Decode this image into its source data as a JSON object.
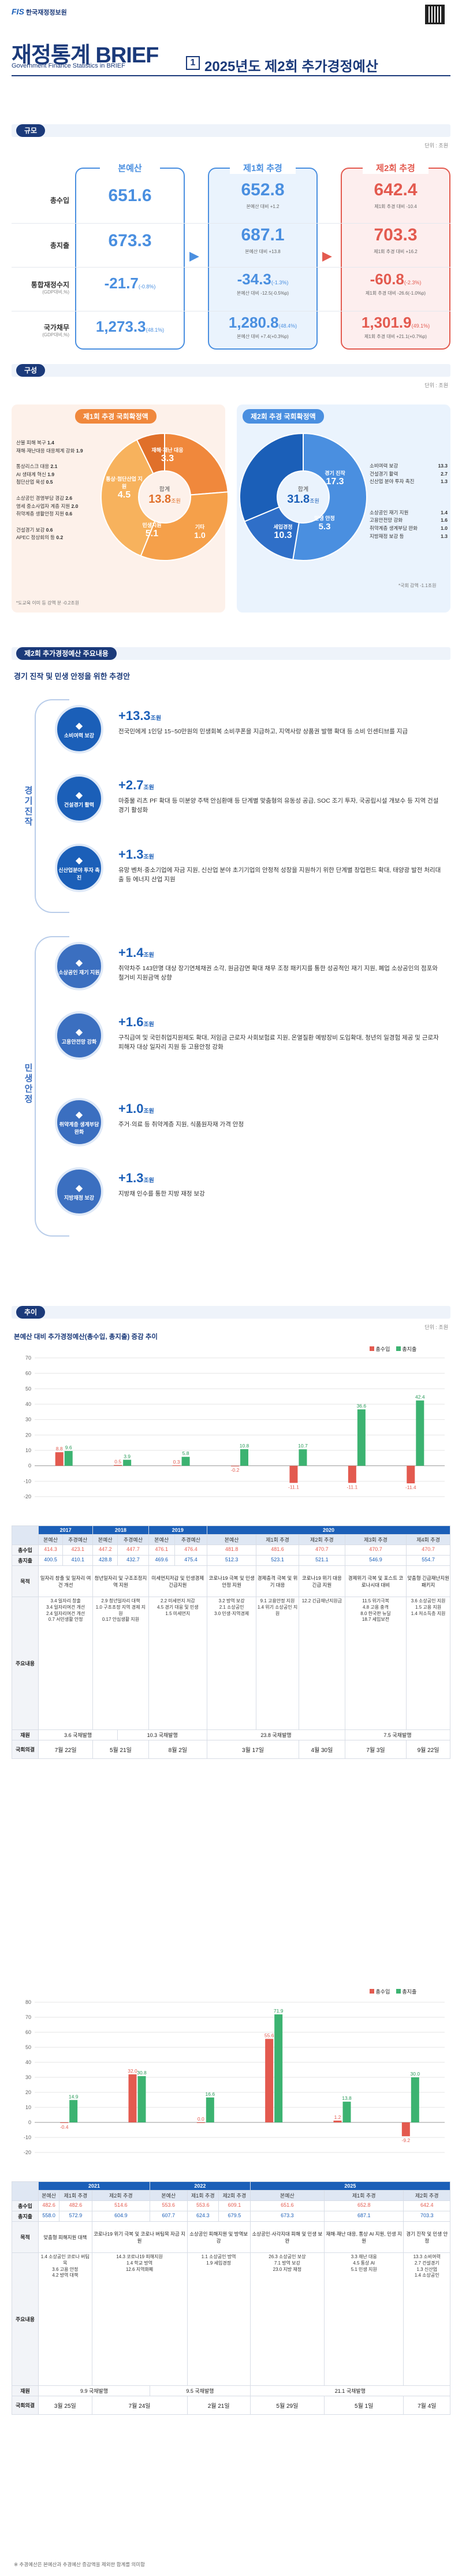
{
  "header": {
    "org": "한국재정정보원",
    "title": "재정통계 BRIEF",
    "subtitle": "Government Finance Statistics in BRIEF",
    "issue_no": "1",
    "issue_title": "2025년도 제2회 추가경정예산"
  },
  "scale": {
    "tag": "규모",
    "unit": "단위 : 조원",
    "cols": [
      {
        "label": "본예산",
        "color": "#4a8fe0"
      },
      {
        "label": "제1회 추경",
        "color": "#4a8fe0"
      },
      {
        "label": "제2회 추경",
        "color": "#e35a4f"
      }
    ],
    "rows": [
      {
        "label": "총수입",
        "sub": "",
        "v": [
          "651.6",
          "652.8",
          "642.4"
        ],
        "n": [
          "",
          "본예산 대비 +1.2",
          "제1회 추경 대비 -10.4"
        ]
      },
      {
        "label": "총지출",
        "sub": "",
        "v": [
          "673.3",
          "687.1",
          "703.3"
        ],
        "n": [
          "",
          "본예산 대비 +13.8",
          "제1회 추경 대비 +16.2"
        ]
      },
      {
        "label": "통합재정수지",
        "sub": "(GDP대비,%)",
        "v": [
          "-21.7",
          "-34.3",
          "-60.8"
        ],
        "p": [
          "(-0.8%)",
          "(-1.3%)",
          "(-2.3%)"
        ],
        "n": [
          "",
          "본예산 대비 -12.5(-0.5%p)",
          "제1회 추경 대비 -26.6(-1.0%p)"
        ]
      },
      {
        "label": "국가채무",
        "sub": "(GDP대비,%)",
        "v": [
          "1,273.3",
          "1,280.8",
          "1,301.9"
        ],
        "p": [
          "(48.1%)",
          "(48.4%)",
          "(49.1%)"
        ],
        "n": [
          "",
          "본예산 대비 +7.4(+0.3%p)",
          "제1회 추경 대비 +21.1(+0.7%p)"
        ]
      }
    ]
  },
  "comp": {
    "tag": "구성",
    "unit": "단위 : 조원",
    "left": {
      "head": "제1회 추경 국회확정액",
      "total_label": "합계",
      "total": "13.8",
      "total_unit": "조원",
      "slices": [
        {
          "label": "재해·재난 대응",
          "value": "3.3"
        },
        {
          "label": "통상·첨단산업 지원",
          "value": "4.5"
        },
        {
          "label": "민생지원",
          "value": "5.1"
        },
        {
          "label": "기타",
          "value": "1.0"
        }
      ],
      "notes_top": [
        [
          "산불 피해 복구",
          "1.4"
        ],
        [
          "재해·재난대응 대응체계 강화",
          "1.9"
        ]
      ],
      "notes_mid": [
        [
          "통상리스크 대응",
          "2.1"
        ],
        [
          "AI 생태계 혁신",
          "1.9"
        ],
        [
          "첨단산업 육성",
          "0.5"
        ]
      ],
      "notes_bot": [
        [
          "소상공인 경영부담 경감",
          "2.6"
        ],
        [
          "영세 중소사업자 계층 지원",
          "2.0"
        ],
        [
          "취약계층 생활안정 지원",
          "0.6"
        ]
      ],
      "notes_etc": [
        [
          "건설경기 보강",
          "0.6"
        ],
        [
          "APEC 정상회의 등",
          "0.2"
        ]
      ],
      "foot": "*도교육 이미 등 강액 분 -0.2조원"
    },
    "right": {
      "head": "제2회 추경 국회확정액",
      "total_label": "합계",
      "total": "31.8",
      "total_unit": "조원",
      "slices": [
        {
          "label": "경기 진작",
          "value": "17.3"
        },
        {
          "label": "민생 안정",
          "value": "5.3"
        },
        {
          "label": "세입경정",
          "value": "10.3"
        }
      ],
      "notes_top": [
        [
          "소비여력 보강",
          "13.3"
        ],
        [
          "건설경기 활력",
          "2.7"
        ],
        [
          "신산업 분야 투자 촉진",
          "1.3"
        ]
      ],
      "notes_bot": [
        [
          "소상공인 재기 지원",
          "1.4"
        ],
        [
          "고용안전망 강화",
          "1.6"
        ],
        [
          "취약계층 생계부담 완화",
          "1.0"
        ],
        [
          "지방재정 보강 등",
          "1.3"
        ]
      ],
      "foot": "*국회 감액 -1.1조원"
    }
  },
  "items": {
    "tag": "제2회 추가경정예산 주요내용",
    "heading": "경기 진작 및 민생 안정을 위한 추경안",
    "groupA": "경기진작",
    "groupB": "민생안정",
    "list": [
      {
        "icon": "소비여력 보강",
        "title": "+13.3",
        "unit": "조원",
        "text": "전국민에게 1인당 15~50만원의 민생회복 소비쿠폰을 지급하고, 지역사랑 상품권 발행 확대 등 소비 인센티브를 지급"
      },
      {
        "icon": "건설경기 활력",
        "title": "+2.7",
        "unit": "조원",
        "text": "마중물 리츠 PF 확대 등 미분양 주택 안심환매 등 단계별 맞춤형의 유동성 공급, SOC 조기 투자, 국공립시설 개보수 등 지역 건설경기 활성화"
      },
      {
        "icon": "신산업분야 투자 촉진",
        "title": "+1.3",
        "unit": "조원",
        "text": "유망 벤처·중소기업에 자금 지원, 신산업 분야 초기기업의 안정적 성장을 지원하기 위한 단계별 창업펀드 확대, 태양광 발전 처리대출 등 에너지 산업 지원"
      },
      {
        "icon": "소상공인 재기 지원",
        "title": "+1.4",
        "unit": "조원",
        "text": "취약차주 143만명 대상 장기연체채권 소각, 원금감면 확대 채무 조정 패키지를 통한 성공적인 재기 지원, 폐업 소상공인의 점포와 철거비 지원금액 상향"
      },
      {
        "icon": "고용안전망 강화",
        "title": "+1.6",
        "unit": "조원",
        "text": "구직급여 및 국민취업지원제도 확대, 저임금 근로자 사회보험료 지원, 온열질환 예방장비 도입확대, 청년의 일경험 제공 및 근로자 피해자 대상 일자리 지원 등 고용안정 강화"
      },
      {
        "icon": "취약계층 생계부담 완화",
        "title": "+1.0",
        "unit": "조원",
        "text": "주거·의료 등 취약계층 지원, 식품원자재 가격 안정"
      },
      {
        "icon": "지방재정 보강",
        "title": "+1.3",
        "unit": "조원",
        "text": "지방채 인수를 통한 지방 재정 보강"
      }
    ]
  },
  "trend": {
    "tag": "추이",
    "unit": "단위 : 조원",
    "heading": "본예산 대비 추가경정예산(총수입, 총지출) 증감 추이",
    "legend": [
      "총수입",
      "총지출"
    ],
    "chart1_groups": [
      "",
      "",
      "",
      "",
      "",
      "",
      "",
      "",
      "제1회 추경",
      "제2회 추경",
      "제3회 추경",
      "제4회 추경"
    ],
    "tables": [
      {
        "years": [
          {
            "y": "2017",
            "c": [
              "본예산",
              "추경예산"
            ]
          },
          {
            "y": "2018",
            "c": [
              "본예산",
              "추경예산"
            ]
          },
          {
            "y": "2019",
            "c": [
              "본예산",
              "추경예산"
            ]
          },
          {
            "y": "2020",
            "c": [
              "본예산",
              "제1회 추경",
              "제2회 추경",
              "제3회 추경",
              "제4회 추경"
            ]
          }
        ],
        "rev": [
          "414.3",
          "423.1",
          "447.2",
          "447.7",
          "476.1",
          "476.4",
          "481.8",
          "481.6",
          "470.7",
          "470.7",
          "470.7"
        ],
        "exp": [
          "400.5",
          "410.1",
          "428.8",
          "432.7",
          "469.6",
          "475.4",
          "512.3",
          "523.1",
          "521.1",
          "546.9",
          "554.7"
        ],
        "purpose": [
          "일자리 창출 및 일자리 여건 개선",
          "청년일자리 및 구조조정지역 지원",
          "미세먼지저감 및 민생경제 긴급지원",
          "코로나19 극복 및 민생안정 지원",
          "경제충격 극복 및 위기 대응",
          "코로나19 위기 대응 긴급 지원",
          "경제위기 극복 및 포스트 코로나시대 대비",
          "맞춤형 긴급재난지원 패키지"
        ],
        "detail": [
          [
            "3.4 일자리 창출",
            "3.4 일자리여건 개선",
            "2.4 일자리여건 개선",
            "0.7 서민생활 안정"
          ],
          [
            "2.9 청년일자리 대책",
            "1.0 구조조정 지역 경제 지원",
            "0.17 안심생활 지원"
          ],
          [
            "2.2 미세먼지 저감",
            "4.5 경기 대응 및 민생",
            "1.5 미세먼지"
          ],
          [
            "3.2 방역 보강",
            "2.1 소상공인",
            "3.0 민생·지역경제"
          ],
          [
            "9.1 고용안정 지원",
            "1.4 위기 소상공인 지원"
          ],
          [
            "12.2 긴급재난지원금"
          ],
          [
            "11.5 위기극복",
            "4.8 고용 충격",
            "8.0 한국판 뉴딜",
            "18.7 세입보전"
          ],
          [
            "3.6 소상공인 지원",
            "1.5 고용 지원",
            "1.4 저소득층 지원"
          ]
        ],
        "vat": [
          "3.6 국채발행",
          "10.3 국채발행",
          "23.8 국채발행",
          "7.5 국채발행"
        ],
        "pass": [
          "7월 22일",
          "5월 21일",
          "8월 2일",
          "3월 17일",
          "4월 30일",
          "7월 3일",
          "9월 22일"
        ]
      },
      {
        "years": [
          {
            "y": "2021",
            "c": [
              "본예산",
              "제1회 추경",
              "제2회 추경"
            ]
          },
          {
            "y": "2022",
            "c": [
              "본예산",
              "제1회 추경",
              "제2회 추경"
            ]
          },
          {
            "y": "2025",
            "c": [
              "본예산",
              "제1회 추경",
              "제2회 추경"
            ]
          }
        ],
        "rev": [
          "482.6",
          "482.6",
          "514.6",
          "553.6",
          "553.6",
          "609.1",
          "651.6",
          "652.8",
          "642.4"
        ],
        "exp": [
          "558.0",
          "572.9",
          "604.9",
          "607.7",
          "624.3",
          "679.5",
          "673.3",
          "687.1",
          "703.3"
        ],
        "purpose": [
          "맞춤형 피해지원 대책",
          "코로나19 위기 극복 및 코로나 버팀목 자금 지원",
          "소상공인 피해지원 및 방역보강",
          "소상공인·사각지대 피해 및 민생 보완",
          "재해·재난 대응, 통상 AI 지원, 민생 지원",
          "경기 진작 및 민생 안정"
        ],
        "detail": [
          [
            "1.4 소상공인 코로나 버팀목",
            "3.6 고용 안정",
            "4.2 방역 대책"
          ],
          [
            "14.3 코로나19 피해지원",
            "1.4 학교 방역",
            "12.6 지역화폐"
          ],
          [
            "1.1 소상공인 방역",
            "1.9 세입경정"
          ],
          [
            "26.3 소상공인 보상",
            "7.1 방역 보강",
            "23.0 지방 재정"
          ],
          [
            "3.3 재난 대응",
            "4.5 통상 AI",
            "5.1 민생 지원"
          ],
          [
            "13.3 소비여력",
            "2.7 건설경기",
            "1.3 신산업",
            "1.4 소상공인"
          ]
        ],
        "vat": [
          "9.9 국채발행",
          "9.5 국채발행",
          "21.1 국채발행"
        ],
        "pass": [
          "3월 25일",
          "7월 24일",
          "2월 21일",
          "5월 29일",
          "5월 1일",
          "7월 4일"
        ]
      }
    ],
    "foot": "※ 추경예산은 본예산과 추경예산 증감액을 제외한 합계를 의미함"
  },
  "chart1": {
    "type": "bar",
    "categories": [
      "2017",
      "2018",
      "2019",
      "2020 1회",
      "2020 2회",
      "2020 3회",
      "2020 4회"
    ],
    "ylim": [
      -20,
      70
    ],
    "series": [
      {
        "name": "총수입",
        "values": [
          8.8,
          0.5,
          0.3,
          -0.2,
          -11.1,
          -11.1,
          -11.4
        ]
      },
      {
        "name": "총지출",
        "values": [
          9.6,
          3.9,
          5.8,
          10.8,
          10.7,
          36.6,
          42.4
        ]
      }
    ],
    "labels_rev": [
      "8.8",
      "0.5",
      "0.3",
      "-0.2",
      "-11.1",
      "-11.1",
      "-11.4"
    ],
    "labels_exp": [
      "9.6",
      "3.9",
      "5.8",
      "10.8",
      "10.7",
      "36.6",
      "42.4"
    ],
    "ticks": [
      "70",
      "60",
      "50",
      "40",
      "30",
      "20",
      "10",
      "0",
      "-10",
      "-20"
    ]
  },
  "chart2": {
    "type": "bar",
    "categories": [
      "2021 1회",
      "2021 2회",
      "2022 1회",
      "2022 2회",
      "2025 1회",
      "2025 2회"
    ],
    "ylim": [
      -20,
      80
    ],
    "series": [
      {
        "name": "총수입",
        "values": [
          -0.4,
          32.0,
          0.0,
          55.6,
          1.2,
          -9.2
        ]
      },
      {
        "name": "총지출",
        "values": [
          14.9,
          30.8,
          16.6,
          71.9,
          13.8,
          30.0
        ]
      }
    ],
    "labels_rev": [
      "-0.4",
      "32.0",
      "0.0",
      "55.6",
      "1.2",
      "-9.2"
    ],
    "labels_exp": [
      "14.9",
      "30.8",
      "16.6",
      "71.9",
      "13.8",
      "30.0"
    ],
    "ticks": [
      "80",
      "70",
      "60",
      "50",
      "40",
      "30",
      "20",
      "10",
      "0",
      "-10",
      "-20"
    ]
  },
  "chart_data": [
    {
      "type": "bar",
      "title": "본예산 대비 추가경정예산(총수입, 총지출) 증감 추이 (2017-2020)",
      "categories": [
        "2017",
        "2018",
        "2019",
        "2020 제1회",
        "2020 제2회",
        "2020 제3회",
        "2020 제4회"
      ],
      "series": [
        {
          "name": "총수입",
          "values": [
            8.8,
            0.5,
            0.3,
            -0.2,
            -11.1,
            -11.1,
            -11.4
          ]
        },
        {
          "name": "총지출",
          "values": [
            9.6,
            3.9,
            5.8,
            10.8,
            10.7,
            36.6,
            42.4
          ]
        }
      ],
      "ylim": [
        -20,
        70
      ],
      "ylabel": "조원"
    },
    {
      "type": "bar",
      "title": "본예산 대비 추가경정예산(총수입, 총지출) 증감 추이 (2021-2025)",
      "categories": [
        "2021 제1회",
        "2021 제2회",
        "2022 제1회",
        "2022 제2회",
        "2025 제1회",
        "2025 제2회"
      ],
      "series": [
        {
          "name": "총수입",
          "values": [
            -0.4,
            32.0,
            0.0,
            55.6,
            1.2,
            -9.2
          ]
        },
        {
          "name": "총지출",
          "values": [
            14.9,
            30.8,
            16.6,
            71.9,
            13.8,
            30.0
          ]
        }
      ],
      "ylim": [
        -20,
        80
      ],
      "ylabel": "조원"
    }
  ],
  "labels": {
    "rev": "총수입",
    "exp": "총지출",
    "purpose": "목적",
    "major": "주요내용",
    "fin": "재원",
    "pass": "국회의결",
    "sum": "합계"
  },
  "colors": {
    "navy": "#1b3a7a",
    "blue": "#1b5fb8",
    "sky": "#4a8fe0",
    "red": "#e35a4f",
    "green": "#3cb371",
    "orange": "#f0883c"
  }
}
